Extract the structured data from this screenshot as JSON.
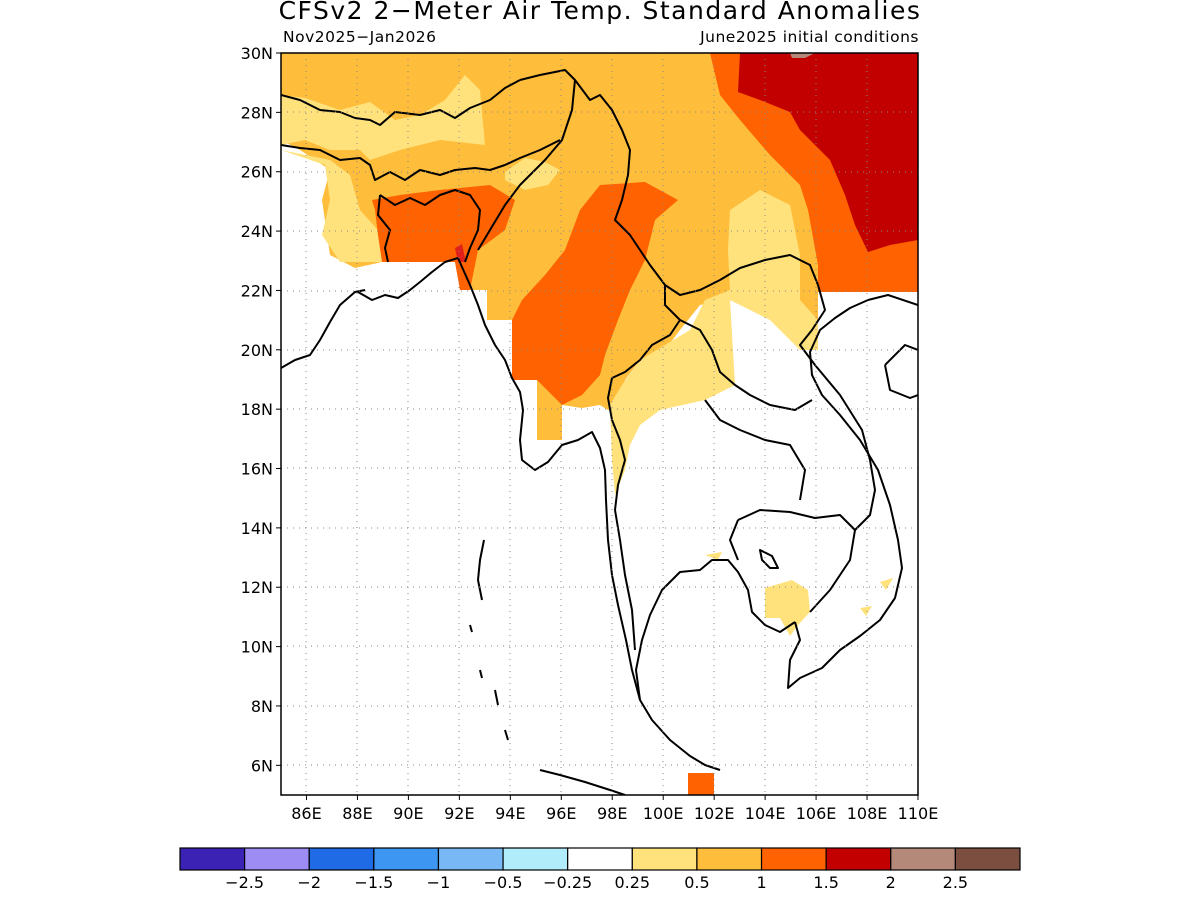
{
  "title": "CFSv2 2−Meter Air Temp. Standard Anomalies",
  "subtitle_left": "Nov2025−Jan2026",
  "subtitle_right": "June2025 initial conditions",
  "map": {
    "lon_range": [
      85,
      110
    ],
    "lat_range": [
      5,
      30
    ],
    "grid": "dotted",
    "lon_ticks": [
      "86E",
      "88E",
      "90E",
      "92E",
      "94E",
      "96E",
      "98E",
      "100E",
      "102E",
      "104E",
      "106E",
      "108E",
      "110E"
    ],
    "lat_ticks": [
      "30N",
      "28N",
      "26N",
      "24N",
      "22N",
      "20N",
      "18N",
      "16N",
      "14N",
      "12N",
      "10N",
      "8N",
      "6N"
    ]
  },
  "legend": {
    "colors": [
      "#3b22b5",
      "#9e8cf5",
      "#1f6be6",
      "#3c96f2",
      "#78b8f5",
      "#b0ecfa",
      "#ffffff",
      "#ffe27c",
      "#ffbd3c",
      "#ff6200",
      "#c20000",
      "#b5897a",
      "#7b4e40"
    ],
    "labels": [
      "−2.5",
      "−2",
      "−1.5",
      "−1",
      "−0.5",
      "−0.25",
      "0.25",
      "0.5",
      "1",
      "1.5",
      "2",
      "2.5"
    ]
  }
}
